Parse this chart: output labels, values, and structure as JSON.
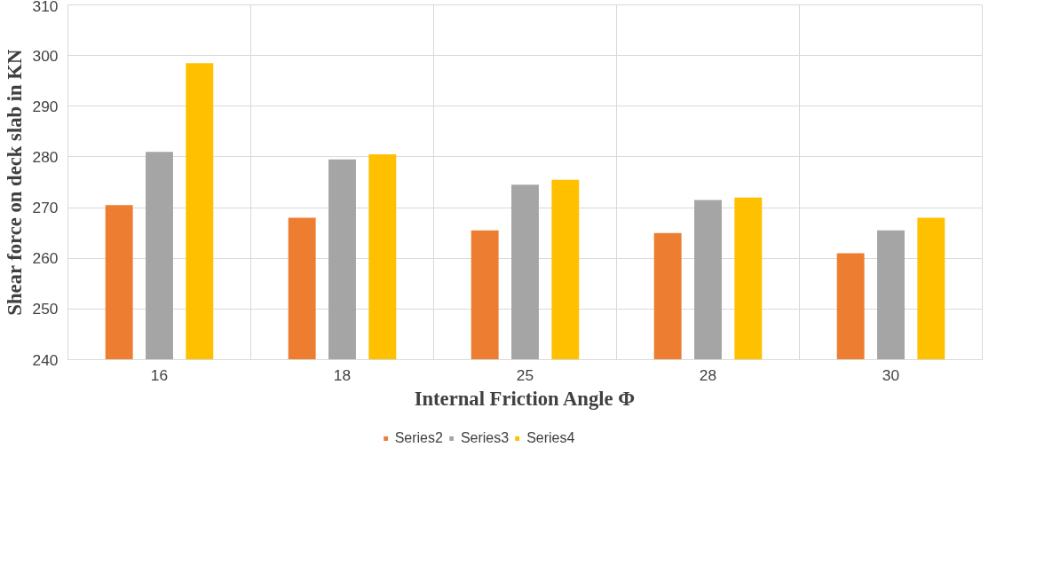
{
  "chart_data": {
    "type": "bar",
    "xlabel": "Internal Friction Angle Φ",
    "ylabel": "Shear force on deck slab in KN",
    "categories": [
      "16",
      "18",
      "25",
      "28",
      "30"
    ],
    "series": [
      {
        "name": "Series2",
        "color": "#ed7d31",
        "values": [
          270.5,
          268,
          265.5,
          265,
          261
        ]
      },
      {
        "name": "Series3",
        "color": "#a5a5a5",
        "values": [
          281,
          279.5,
          274.5,
          271.5,
          265.5
        ]
      },
      {
        "name": "Series4",
        "color": "#ffc000",
        "values": [
          298.5,
          280.5,
          275.5,
          272,
          268
        ]
      }
    ],
    "ylim": [
      240,
      310
    ],
    "yticks": [
      240,
      250,
      260,
      270,
      280,
      290,
      300,
      310
    ],
    "grid": true,
    "legend": "bottom"
  }
}
